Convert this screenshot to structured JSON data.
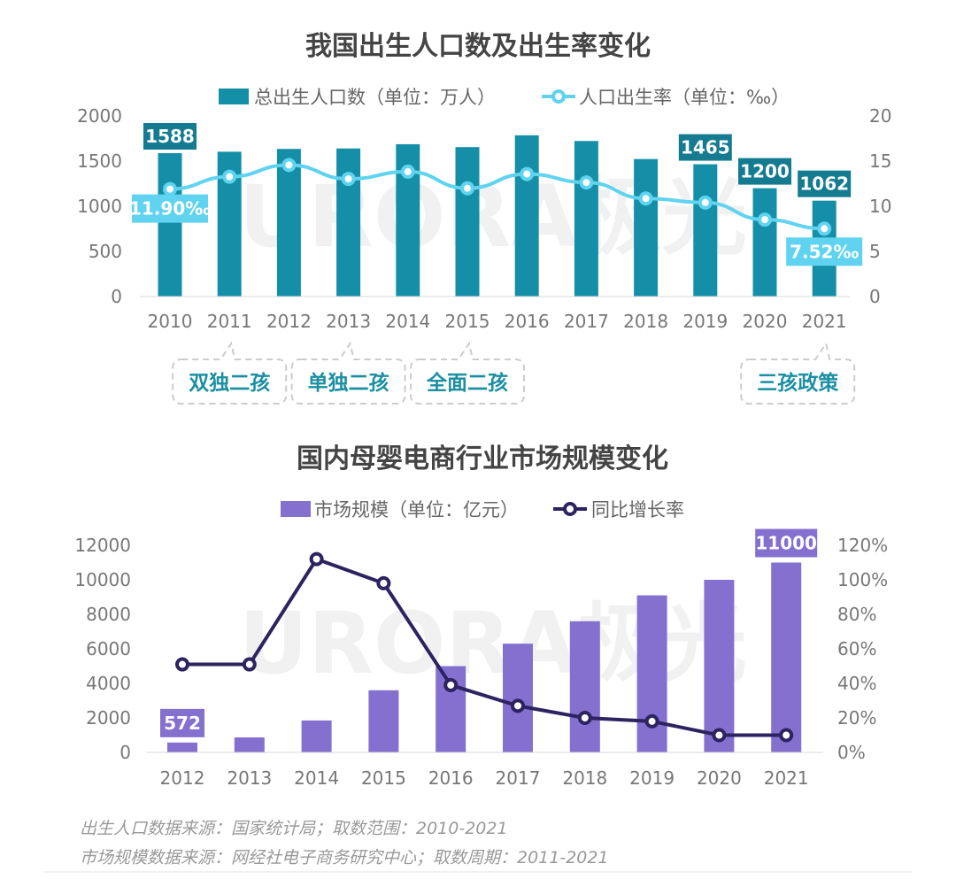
{
  "chart_data": [
    {
      "type": "bar",
      "title": "我国出生人口数及出生率变化",
      "categories": [
        "2010",
        "2011",
        "2012",
        "2013",
        "2014",
        "2015",
        "2016",
        "2017",
        "2018",
        "2019",
        "2020",
        "2021"
      ],
      "series": [
        {
          "name": "总出生人口数（单位：万人）",
          "type": "bar",
          "axis": "left",
          "values": [
            1588,
            1604,
            1635,
            1640,
            1687,
            1655,
            1786,
            1723,
            1523,
            1465,
            1200,
            1062
          ]
        },
        {
          "name": "人口出生率（单位：‰）",
          "type": "line",
          "axis": "right",
          "values": [
            11.9,
            13.27,
            14.57,
            13.03,
            13.83,
            11.99,
            13.57,
            12.64,
            10.86,
            10.41,
            8.52,
            7.52
          ]
        }
      ],
      "ylim_left": [
        0,
        2000
      ],
      "ylim_right": [
        0,
        20
      ],
      "yticks_left": [
        "0",
        "500",
        "1000",
        "1500",
        "2000"
      ],
      "yticks_right": [
        "0",
        "5",
        "10",
        "15",
        "20"
      ],
      "bar_labels": [
        {
          "index": 0,
          "text": "1588"
        },
        {
          "index": 9,
          "text": "1465"
        },
        {
          "index": 10,
          "text": "1200"
        },
        {
          "index": 11,
          "text": "1062"
        }
      ],
      "line_labels": [
        {
          "index": 0,
          "text": "11.90‰"
        },
        {
          "index": 11,
          "text": "7.52‰"
        }
      ],
      "annotations": [
        {
          "text": "双独二孩",
          "year_index": 1
        },
        {
          "text": "单独二孩",
          "year_index": 3
        },
        {
          "text": "全面二孩",
          "year_index": 5
        },
        {
          "text": "三孩政策",
          "year_index": 11
        }
      ],
      "colors": {
        "bar": "#158fa8",
        "line": "#5fd3ef",
        "label_bg_line": "#5fd3ef",
        "label_bg_bar": "#147b91"
      }
    },
    {
      "type": "bar",
      "title": "国内母婴电商行业市场规模变化",
      "categories": [
        "2012",
        "2013",
        "2014",
        "2015",
        "2016",
        "2017",
        "2018",
        "2019",
        "2020",
        "2021"
      ],
      "series": [
        {
          "name": "市场规模（单位：亿元）",
          "type": "bar",
          "axis": "left",
          "values": [
            572,
            870,
            1850,
            3600,
            5000,
            6300,
            7600,
            9100,
            10000,
            11000
          ]
        },
        {
          "name": "同比增长率",
          "type": "line",
          "axis": "right",
          "values": [
            51,
            51,
            112,
            98,
            39,
            27,
            20,
            18,
            10,
            10
          ]
        }
      ],
      "ylim_left": [
        0,
        12000
      ],
      "ylim_right": [
        0,
        120
      ],
      "yticks_left": [
        "0",
        "2000",
        "4000",
        "6000",
        "8000",
        "10000",
        "12000"
      ],
      "yticks_right": [
        "0%",
        "20%",
        "40%",
        "60%",
        "80%",
        "100%",
        "120%"
      ],
      "bar_labels": [
        {
          "index": 0,
          "text": "572"
        },
        {
          "index": 9,
          "text": "11000"
        }
      ],
      "colors": {
        "bar": "#8470cf",
        "line": "#2c2360",
        "label_bg_bar": "#8470cf"
      }
    }
  ],
  "watermark": "URORA极光",
  "footnotes": [
    "出生人口数据来源：国家统计局；取数范围：2010-2021",
    "市场规模数据来源：网经社电子商务研究中心；取数周期：2011-2021"
  ]
}
